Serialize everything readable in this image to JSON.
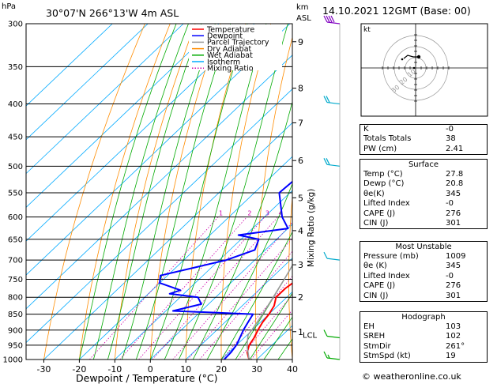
{
  "header": {
    "hpa_label": "hPa",
    "location": "30°07'N  266°13'W  4m  ASL",
    "km_label": "km",
    "asl_label": "ASL",
    "datetime": "14.10.2021  12GMT  (Base: 00)"
  },
  "legend": [
    {
      "label": "Temperature",
      "color": "#ff0000",
      "style": "solid"
    },
    {
      "label": "Dewpoint",
      "color": "#0000ff",
      "style": "solid"
    },
    {
      "label": "Parcel Trajectory",
      "color": "#999999",
      "style": "solid"
    },
    {
      "label": "Dry Adiabat",
      "color": "#ff8c00",
      "style": "solid"
    },
    {
      "label": "Wet Adiabat",
      "color": "#00aa00",
      "style": "solid"
    },
    {
      "label": "Isotherm",
      "color": "#00aaff",
      "style": "solid"
    },
    {
      "label": "Mixing Ratio",
      "color": "#cc00aa",
      "style": "dotted"
    }
  ],
  "chart_data": {
    "type": "line",
    "title": "",
    "xlabel": "Dewpoint / Temperature (°C)",
    "ylabel": "hPa",
    "y_scale": "log-pressure",
    "xlim": [
      -35,
      40
    ],
    "ylim": [
      1000,
      300
    ],
    "x_ticks": [
      -30,
      -20,
      -10,
      0,
      10,
      20,
      30,
      40
    ],
    "pressure_ticks": [
      300,
      350,
      400,
      450,
      500,
      550,
      600,
      650,
      700,
      750,
      800,
      850,
      900,
      950,
      1000
    ],
    "km_ticks": [
      {
        "label": "9",
        "p": 320
      },
      {
        "label": "8",
        "p": 378
      },
      {
        "label": "7",
        "p": 428
      },
      {
        "label": "6",
        "p": 490
      },
      {
        "label": "5",
        "p": 560
      },
      {
        "label": "4",
        "p": 630
      },
      {
        "label": "3",
        "p": 712
      },
      {
        "label": "2",
        "p": 800
      },
      {
        "label": "1",
        "p": 905
      }
    ],
    "lcl": {
      "label": "LCL",
      "p": 915
    },
    "mixing_ratio_label": "Mixing Ratio (g/kg)",
    "mixing_ratios": [
      1,
      2,
      3,
      4,
      6,
      8,
      10,
      15,
      20,
      25
    ],
    "mixing_ratio_labels": [
      "1",
      "2",
      "3",
      "4",
      "6",
      "8",
      "10",
      "15",
      "20",
      "25"
    ],
    "series": [
      {
        "name": "Temperature",
        "color": "#ff0000",
        "points": [
          [
            1000,
            27.8
          ],
          [
            975,
            25.2
          ],
          [
            950,
            23.6
          ],
          [
            925,
            22.8
          ],
          [
            900,
            21.6
          ],
          [
            875,
            20.6
          ],
          [
            850,
            20.0
          ],
          [
            825,
            19.0
          ],
          [
            800,
            17.0
          ],
          [
            775,
            17.0
          ],
          [
            750,
            17.8
          ],
          [
            725,
            14.0
          ],
          [
            700,
            12.0
          ],
          [
            650,
            8.4
          ],
          [
            600,
            4.2
          ],
          [
            550,
            0.0
          ],
          [
            500,
            -4.6
          ],
          [
            450,
            -10.0
          ],
          [
            400,
            -16.0
          ],
          [
            350,
            -24.0
          ],
          [
            300,
            -32.0
          ]
        ]
      },
      {
        "name": "Dewpoint",
        "color": "#0000ff",
        "points": [
          [
            1000,
            20.8
          ],
          [
            975,
            20.6
          ],
          [
            950,
            20.0
          ],
          [
            925,
            18.8
          ],
          [
            900,
            17.5
          ],
          [
            875,
            16.5
          ],
          [
            850,
            15.5
          ],
          [
            840,
            -8.0
          ],
          [
            820,
            -2.0
          ],
          [
            800,
            -5.0
          ],
          [
            790,
            -14.0
          ],
          [
            780,
            -12.0
          ],
          [
            760,
            -20.0
          ],
          [
            740,
            -22.0
          ],
          [
            720,
            -15.0
          ],
          [
            700,
            -8.0
          ],
          [
            675,
            -3.0
          ],
          [
            650,
            -5.0
          ],
          [
            640,
            -12.0
          ],
          [
            625,
            0.0
          ],
          [
            600,
            -5.0
          ],
          [
            550,
            -13.0
          ],
          [
            500,
            -12.0
          ],
          [
            450,
            -6.0
          ],
          [
            420,
            -18.0
          ],
          [
            400,
            -20.0
          ],
          [
            350,
            -30.0
          ],
          [
            320,
            -32.0
          ],
          [
            300,
            -40.0
          ]
        ]
      },
      {
        "name": "Parcel Trajectory",
        "color": "#999999",
        "points": [
          [
            1000,
            27.8
          ],
          [
            950,
            23.0
          ],
          [
            915,
            20.2
          ],
          [
            900,
            19.9
          ],
          [
            850,
            18.2
          ],
          [
            800,
            16.2
          ],
          [
            750,
            14.0
          ],
          [
            700,
            11.5
          ],
          [
            650,
            8.5
          ],
          [
            600,
            5.2
          ],
          [
            550,
            1.4
          ],
          [
            500,
            -3.0
          ],
          [
            450,
            -8.5
          ],
          [
            400,
            -14.8
          ],
          [
            350,
            -22.8
          ],
          [
            300,
            -33.0
          ]
        ]
      }
    ],
    "wind_barbs": [
      {
        "p": 300,
        "speed_kt": 40,
        "color": "#8000c0"
      },
      {
        "p": 400,
        "speed_kt": 20,
        "color": "#00aacc"
      },
      {
        "p": 500,
        "speed_kt": 20,
        "color": "#00aacc"
      },
      {
        "p": 700,
        "speed_kt": 10,
        "color": "#00aacc"
      },
      {
        "p": 925,
        "speed_kt": 10,
        "color": "#00aa00"
      },
      {
        "p": 1000,
        "speed_kt": 15,
        "color": "#00aa00"
      }
    ]
  },
  "hodograph": {
    "unit_label": "kt",
    "ring_labels": [
      "10",
      "20",
      "30"
    ]
  },
  "indices": {
    "top": [
      {
        "label": "K",
        "value": "-0"
      },
      {
        "label": "Totals Totals",
        "value": "38"
      },
      {
        "label": "PW (cm)",
        "value": "2.41"
      }
    ],
    "surface": {
      "title": "Surface",
      "rows": [
        {
          "label": "Temp (°C)",
          "value": "27.8"
        },
        {
          "label": "Dewp (°C)",
          "value": "20.8"
        },
        {
          "label": "θe(K)",
          "value": "345"
        },
        {
          "label": "Lifted Index",
          "value": "-0"
        },
        {
          "label": "CAPE (J)",
          "value": "276"
        },
        {
          "label": "CIN (J)",
          "value": "301"
        }
      ]
    },
    "most_unstable": {
      "title": "Most Unstable",
      "rows": [
        {
          "label": "Pressure (mb)",
          "value": "1009"
        },
        {
          "label": "θe (K)",
          "value": "345"
        },
        {
          "label": "Lifted Index",
          "value": "-0"
        },
        {
          "label": "CAPE (J)",
          "value": "276"
        },
        {
          "label": "CIN (J)",
          "value": "301"
        }
      ]
    },
    "hodograph_params": {
      "title": "Hodograph",
      "rows": [
        {
          "label": "EH",
          "value": "103"
        },
        {
          "label": "SREH",
          "value": "102"
        },
        {
          "label": "StmDir",
          "value": "261°"
        },
        {
          "label": "StmSpd (kt)",
          "value": "19"
        }
      ]
    }
  },
  "footer": "© weatheronline.co.uk"
}
